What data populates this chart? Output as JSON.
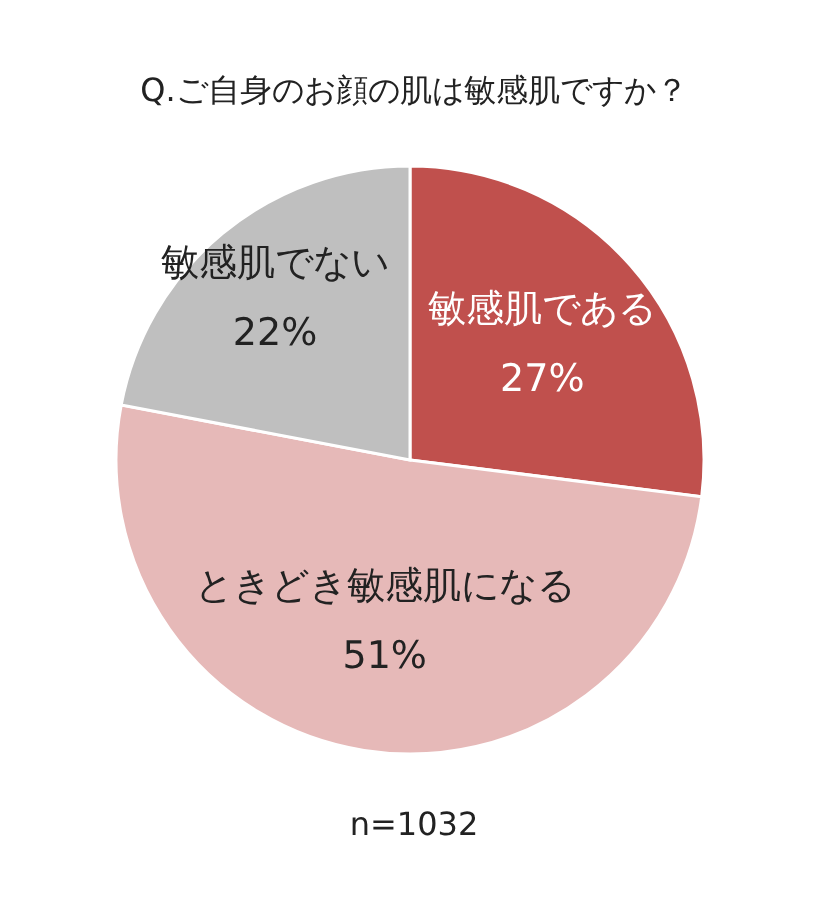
{
  "chart_data": {
    "type": "pie",
    "title": "Q.ご自身のお顔の肌は敏感肌ですか？",
    "categories": [
      "敏感肌である",
      "ときどき敏感肌になる",
      "敏感肌でない"
    ],
    "values": [
      27,
      51,
      22
    ],
    "colors": [
      "#c0504d",
      "#e6b9b8",
      "#bfbfbf"
    ],
    "value_labels": [
      "27%",
      "51%",
      "22%"
    ],
    "annotations": [
      "n=1032"
    ]
  }
}
